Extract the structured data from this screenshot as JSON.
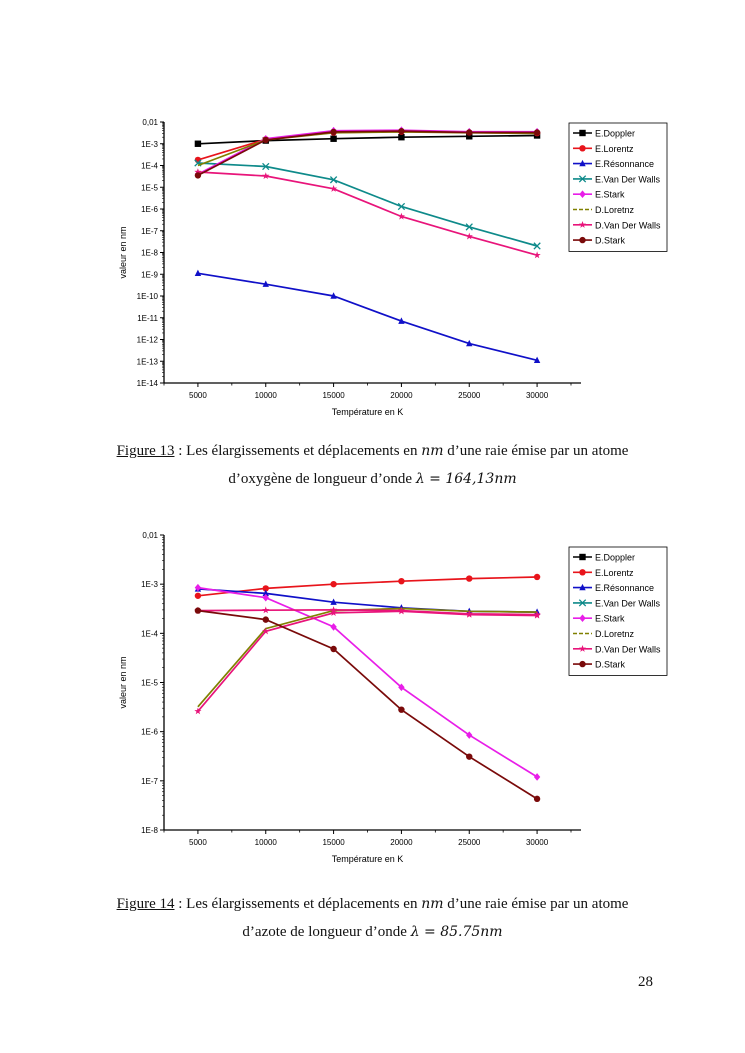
{
  "chart_data": [
    {
      "type": "line",
      "title": "",
      "xlabel": "Température en K",
      "ylabel": "valeur en nm",
      "yscale": "log",
      "ylim": [
        1e-14,
        0.01
      ],
      "xlim": [
        2500,
        32500
      ],
      "x": [
        5000,
        10000,
        15000,
        20000,
        25000,
        30000
      ],
      "xticks": [
        "5000",
        "10000",
        "15000",
        "20000",
        "25000",
        "30000"
      ],
      "yticks": [
        "0,01",
        "1E-3",
        "1E-4",
        "1E-5",
        "1E-6",
        "1E-7",
        "1E-8",
        "1E-9",
        "1E-10",
        "1E-11",
        "1E-12",
        "1E-13",
        "1E-14"
      ],
      "legend_position": "top-right-outside",
      "series": [
        {
          "name": "E.Doppler",
          "color": "#000000",
          "marker": "square",
          "values": [
            0.001,
            0.0014,
            0.0017,
            0.002,
            0.0022,
            0.0024
          ]
        },
        {
          "name": "E.Lorentz",
          "color": "#e8141b",
          "marker": "circle",
          "values": [
            0.00018,
            0.0016,
            0.0033,
            0.0036,
            0.0033,
            0.0031
          ]
        },
        {
          "name": "E.Résonnance",
          "color": "#1010c8",
          "marker": "triangle",
          "values": [
            1.1e-09,
            3.5e-10,
            1e-10,
            7e-12,
            6.5e-13,
            1.1e-13
          ]
        },
        {
          "name": "E.Van Der Walls",
          "color": "#0e8a8a",
          "marker": "x",
          "values": [
            0.00013,
            9e-05,
            2.2e-05,
            1.3e-06,
            1.5e-07,
            2e-08
          ]
        },
        {
          "name": "E.Stark",
          "color": "#e81ee8",
          "marker": "diamond",
          "values": [
            4e-05,
            0.0017,
            0.004,
            0.0042,
            0.0036,
            0.0036
          ]
        },
        {
          "name": "D.Loretnz",
          "color": "#808000",
          "marker": "none",
          "values": [
            0.0001,
            0.0015,
            0.0032,
            0.0035,
            0.0032,
            0.003
          ]
        },
        {
          "name": "D.Van Der Walls",
          "color": "#e8147a",
          "marker": "star",
          "values": [
            5e-05,
            3.3e-05,
            8.5e-06,
            4.5e-07,
            5.5e-08,
            7.5e-09
          ]
        },
        {
          "name": "D.Stark",
          "color": "#7a0a0a",
          "marker": "circle",
          "values": [
            3.5e-05,
            0.0015,
            0.0035,
            0.0038,
            0.0033,
            0.0033
          ]
        }
      ]
    },
    {
      "type": "line",
      "title": "",
      "xlabel": "Température en K",
      "ylabel": "valeur en nm",
      "yscale": "log",
      "ylim": [
        1e-08,
        0.01
      ],
      "xlim": [
        2500,
        32500
      ],
      "x": [
        5000,
        10000,
        15000,
        20000,
        25000,
        30000
      ],
      "xticks": [
        "5000",
        "10000",
        "15000",
        "20000",
        "25000",
        "30000"
      ],
      "yticks": [
        "0,01",
        "1E-3",
        "1E-4",
        "1E-5",
        "1E-6",
        "1E-7",
        "1E-8"
      ],
      "legend_position": "top-right-outside",
      "series": [
        {
          "name": "E.Doppler",
          "color": "#000000",
          "marker": "square",
          "values": []
        },
        {
          "name": "E.Lorentz",
          "color": "#e8141b",
          "marker": "circle",
          "values": [
            0.00058,
            0.00082,
            0.001,
            0.00115,
            0.0013,
            0.0014
          ]
        },
        {
          "name": "E.Résonnance",
          "color": "#1010c8",
          "marker": "triangle",
          "values": [
            0.0008,
            0.00065,
            0.00043,
            0.00033,
            0.00028,
            0.00027
          ]
        },
        {
          "name": "E.Van Der Walls",
          "color": "#0e8a8a",
          "marker": "x",
          "values": []
        },
        {
          "name": "E.Stark",
          "color": "#e81ee8",
          "marker": "diamond",
          "values": [
            0.00085,
            0.00053,
            0.000135,
            8e-06,
            8.5e-07,
            1.2e-07
          ]
        },
        {
          "name": "D.Loretnz",
          "color": "#808000",
          "marker": "none",
          "values": [
            3.2e-06,
            0.000125,
            0.00029,
            0.00032,
            0.00028,
            0.00027
          ]
        },
        {
          "name": "D.Van Der Walls",
          "color": "#e8147a",
          "marker": "star",
          "values": [
            2.6e-06,
            0.00011,
            0.00026,
            0.00028,
            0.00024,
            0.00023
          ]
        },
        {
          "name": "D.Van Der Walls (flat)",
          "color": "#e8147a",
          "marker": "star",
          "values": [
            0.00029,
            0.000295,
            0.0003,
            0.00029,
            0.00025,
            0.00024
          ]
        },
        {
          "name": "D.Stark",
          "color": "#7a0a0a",
          "marker": "circle",
          "values": [
            0.00029,
            0.00019,
            4.8e-05,
            2.8e-06,
            3.1e-07,
            4.3e-08
          ]
        }
      ]
    }
  ],
  "captions": {
    "fig13": {
      "label": "Figure 13",
      "line1": " : Les élargissements et déplacements en ",
      "unit": "nm",
      "line1b": " d’une raie émise par un atome",
      "line2": "d’oxygène de longueur d’onde ",
      "formula": "λ = 164,13nm"
    },
    "fig14": {
      "label": "Figure 14",
      "line1": " : Les élargissements et déplacements en ",
      "unit": "nm",
      "line1b": " d’une raie émise par un atome",
      "line2": "d’azote de longueur d’onde ",
      "formula": "λ =  85.75nm"
    }
  },
  "page_number": "28"
}
